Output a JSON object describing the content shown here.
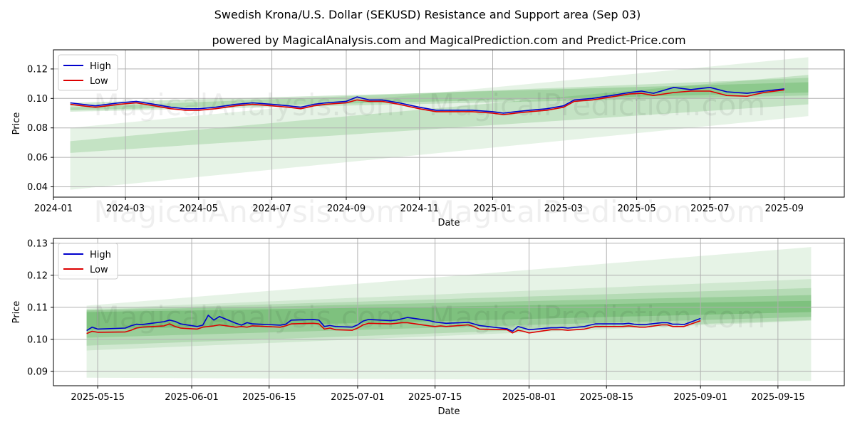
{
  "title": "Swedish Krona/U.S. Dollar (SEKUSD) Resistance and Support area (Sep 03)",
  "subtitle": "powered by MagicalAnalysis.com and MagicalPrediction.com and Predict-Price.com",
  "watermarks": [
    "MagicalAnalysis.com",
    "MagicalPrediction.com"
  ],
  "colors": {
    "high": "#0000cc",
    "low": "#dd0000",
    "band": "#2e9b2e",
    "grid": "#b0b0b0"
  },
  "chart_data": [
    {
      "type": "line",
      "id": "top",
      "xlabel": "Date",
      "ylabel": "Price",
      "xlim": [
        "2024-01-01",
        "2025-10-21"
      ],
      "ylim": [
        0.033,
        0.133
      ],
      "xticks": [
        "2024-01-01",
        "2024-03-01",
        "2024-05-01",
        "2024-07-01",
        "2024-09-01",
        "2024-11-01",
        "2025-01-01",
        "2025-03-01",
        "2025-05-01",
        "2025-07-01",
        "2025-09-01"
      ],
      "xtick_labels": [
        "2024-01",
        "2024-03",
        "2024-05",
        "2024-07",
        "2024-09",
        "2024-11",
        "2025-01",
        "2025-03",
        "2025-05",
        "2025-07",
        "2025-09"
      ],
      "yticks": [
        0.04,
        0.06,
        0.08,
        0.1,
        0.12
      ],
      "ytick_labels": [
        "0.04",
        "0.06",
        "0.08",
        "0.10",
        "0.12"
      ],
      "legend": {
        "position": "top-left",
        "entries": [
          "High",
          "Low"
        ]
      },
      "bands": [
        {
          "x0": "2024-01-15",
          "x1": "2025-09-21",
          "lower": [
            0.038,
            0.088
          ],
          "upper": [
            0.08,
            0.128
          ],
          "opacity": 0.12
        },
        {
          "x0": "2024-01-15",
          "x1": "2025-09-21",
          "lower": [
            0.063,
            0.096
          ],
          "upper": [
            0.071,
            0.116
          ],
          "opacity": 0.18
        },
        {
          "x0": "2024-01-15",
          "x1": "2025-09-21",
          "lower": [
            0.091,
            0.102
          ],
          "upper": [
            0.094,
            0.114
          ],
          "opacity": 0.18
        },
        {
          "x0": "2024-01-15",
          "x1": "2025-09-21",
          "lower": [
            0.092,
            0.104
          ],
          "upper": [
            0.097,
            0.111
          ],
          "opacity": 0.22
        }
      ],
      "series": [
        {
          "name": "High",
          "x": [
            "2024-01-15",
            "2024-01-25",
            "2024-02-05",
            "2024-02-15",
            "2024-02-25",
            "2024-03-10",
            "2024-03-25",
            "2024-04-08",
            "2024-04-20",
            "2024-05-01",
            "2024-05-15",
            "2024-06-01",
            "2024-06-15",
            "2024-07-01",
            "2024-07-15",
            "2024-07-25",
            "2024-08-05",
            "2024-08-15",
            "2024-09-01",
            "2024-09-10",
            "2024-09-20",
            "2024-10-01",
            "2024-10-15",
            "2024-11-01",
            "2024-11-15",
            "2024-12-01",
            "2024-12-15",
            "2025-01-01",
            "2025-01-10",
            "2025-01-20",
            "2025-02-01",
            "2025-02-15",
            "2025-03-01",
            "2025-03-10",
            "2025-03-25",
            "2025-04-10",
            "2025-04-25",
            "2025-05-05",
            "2025-05-15",
            "2025-06-01",
            "2025-06-15",
            "2025-07-01",
            "2025-07-15",
            "2025-08-01",
            "2025-08-15",
            "2025-09-01"
          ],
          "y": [
            0.097,
            0.096,
            0.095,
            0.096,
            0.097,
            0.098,
            0.096,
            0.094,
            0.093,
            0.093,
            0.094,
            0.096,
            0.097,
            0.096,
            0.095,
            0.094,
            0.096,
            0.097,
            0.098,
            0.101,
            0.099,
            0.099,
            0.097,
            0.094,
            0.092,
            0.092,
            0.092,
            0.091,
            0.09,
            0.091,
            0.092,
            0.093,
            0.095,
            0.099,
            0.1,
            0.102,
            0.104,
            0.105,
            0.1035,
            0.1075,
            0.106,
            0.1075,
            0.1045,
            0.1035,
            0.105,
            0.1065
          ]
        },
        {
          "name": "Low",
          "x": [
            "2024-01-15",
            "2024-01-25",
            "2024-02-05",
            "2024-02-15",
            "2024-02-25",
            "2024-03-10",
            "2024-03-25",
            "2024-04-08",
            "2024-04-20",
            "2024-05-01",
            "2024-05-15",
            "2024-06-01",
            "2024-06-15",
            "2024-07-01",
            "2024-07-15",
            "2024-07-25",
            "2024-08-05",
            "2024-08-15",
            "2024-09-01",
            "2024-09-10",
            "2024-09-20",
            "2024-10-01",
            "2024-10-15",
            "2024-11-01",
            "2024-11-15",
            "2024-12-01",
            "2024-12-15",
            "2025-01-01",
            "2025-01-10",
            "2025-01-20",
            "2025-02-01",
            "2025-02-15",
            "2025-03-01",
            "2025-03-10",
            "2025-03-25",
            "2025-04-10",
            "2025-04-25",
            "2025-05-05",
            "2025-05-15",
            "2025-06-01",
            "2025-06-15",
            "2025-07-01",
            "2025-07-15",
            "2025-08-01",
            "2025-08-15",
            "2025-09-01"
          ],
          "y": [
            0.096,
            0.095,
            0.094,
            0.095,
            0.096,
            0.097,
            0.095,
            0.093,
            0.092,
            0.092,
            0.093,
            0.095,
            0.096,
            0.095,
            0.094,
            0.093,
            0.095,
            0.096,
            0.097,
            0.099,
            0.098,
            0.098,
            0.096,
            0.093,
            0.091,
            0.091,
            0.091,
            0.09,
            0.089,
            0.09,
            0.091,
            0.092,
            0.094,
            0.098,
            0.099,
            0.101,
            0.103,
            0.1035,
            0.102,
            0.104,
            0.105,
            0.105,
            0.102,
            0.1015,
            0.104,
            0.1058
          ]
        }
      ]
    },
    {
      "type": "line",
      "id": "bottom",
      "xlabel": "Date",
      "ylabel": "Price",
      "xlim": [
        "2025-05-07",
        "2025-09-27"
      ],
      "ylim": [
        0.0855,
        0.1315
      ],
      "xticks": [
        "2025-05-15",
        "2025-06-01",
        "2025-06-15",
        "2025-07-01",
        "2025-07-15",
        "2025-08-01",
        "2025-08-15",
        "2025-09-01",
        "2025-09-15"
      ],
      "xtick_labels": [
        "2025-05-15",
        "2025-06-01",
        "2025-06-15",
        "2025-07-01",
        "2025-07-15",
        "2025-08-01",
        "2025-08-15",
        "2025-09-01",
        "2025-09-15"
      ],
      "yticks": [
        0.09,
        0.1,
        0.11,
        0.12,
        0.13
      ],
      "ytick_labels": [
        "0.09",
        "0.10",
        "0.11",
        "0.12",
        "0.13"
      ],
      "legend": {
        "position": "top-left",
        "entries": [
          "High",
          "Low"
        ]
      },
      "bands": [
        {
          "x0": "2025-05-13",
          "x1": "2025-09-21",
          "lower": [
            0.088,
            0.087
          ],
          "upper": [
            0.1105,
            0.1288
          ],
          "opacity": 0.12
        },
        {
          "x0": "2025-05-13",
          "x1": "2025-09-21",
          "lower": [
            0.0965,
            0.1058
          ],
          "upper": [
            0.1095,
            0.1188
          ],
          "opacity": 0.12
        },
        {
          "x0": "2025-05-13",
          "x1": "2025-09-21",
          "lower": [
            0.098,
            0.106
          ],
          "upper": [
            0.1092,
            0.116
          ],
          "opacity": 0.16
        },
        {
          "x0": "2025-05-13",
          "x1": "2025-09-21",
          "lower": [
            0.1005,
            0.107
          ],
          "upper": [
            0.109,
            0.1138
          ],
          "opacity": 0.2
        },
        {
          "x0": "2025-05-13",
          "x1": "2025-09-21",
          "lower": [
            0.103,
            0.1085
          ],
          "upper": [
            0.1085,
            0.112
          ],
          "opacity": 0.25
        }
      ],
      "series": [
        {
          "name": "High",
          "x": [
            "2025-05-13",
            "2025-05-14",
            "2025-05-15",
            "2025-05-20",
            "2025-05-21",
            "2025-05-22",
            "2025-05-23",
            "2025-05-27",
            "2025-05-28",
            "2025-05-29",
            "2025-05-30",
            "2025-06-02",
            "2025-06-03",
            "2025-06-04",
            "2025-06-05",
            "2025-06-06",
            "2025-06-09",
            "2025-06-10",
            "2025-06-11",
            "2025-06-12",
            "2025-06-17",
            "2025-06-18",
            "2025-06-19",
            "2025-06-23",
            "2025-06-24",
            "2025-06-25",
            "2025-06-26",
            "2025-06-27",
            "2025-06-30",
            "2025-07-01",
            "2025-07-02",
            "2025-07-03",
            "2025-07-07",
            "2025-07-08",
            "2025-07-09",
            "2025-07-10",
            "2025-07-14",
            "2025-07-15",
            "2025-07-16",
            "2025-07-17",
            "2025-07-21",
            "2025-07-22",
            "2025-07-23",
            "2025-07-28",
            "2025-07-29",
            "2025-07-30",
            "2025-07-31",
            "2025-08-01",
            "2025-08-05",
            "2025-08-06",
            "2025-08-07",
            "2025-08-08",
            "2025-08-11",
            "2025-08-12",
            "2025-08-13",
            "2025-08-14",
            "2025-08-15",
            "2025-08-18",
            "2025-08-19",
            "2025-08-20",
            "2025-08-21",
            "2025-08-22",
            "2025-08-25",
            "2025-08-26",
            "2025-08-27",
            "2025-08-28",
            "2025-08-29",
            "2025-09-01"
          ],
          "y": [
            0.1027,
            0.1038,
            0.1032,
            0.1035,
            0.1042,
            0.1047,
            0.1046,
            0.1055,
            0.106,
            0.1056,
            0.1048,
            0.104,
            0.1044,
            0.1075,
            0.106,
            0.1071,
            0.105,
            0.1044,
            0.1052,
            0.1048,
            0.1044,
            0.1047,
            0.106,
            0.1062,
            0.106,
            0.104,
            0.1043,
            0.104,
            0.1038,
            0.1045,
            0.1057,
            0.1062,
            0.1058,
            0.106,
            0.1064,
            0.1068,
            0.1058,
            0.1054,
            0.1052,
            0.105,
            0.1053,
            0.1048,
            0.1043,
            0.1033,
            0.1025,
            0.104,
            0.1035,
            0.103,
            0.1036,
            0.1036,
            0.1037,
            0.1035,
            0.104,
            0.1044,
            0.1048,
            0.1048,
            0.1048,
            0.1048,
            0.105,
            0.1047,
            0.1046,
            0.1046,
            0.1052,
            0.1052,
            0.1047,
            0.1047,
            0.1046,
            0.1065
          ]
        },
        {
          "name": "Low",
          "x": [
            "2025-05-13",
            "2025-05-14",
            "2025-05-15",
            "2025-05-20",
            "2025-05-21",
            "2025-05-22",
            "2025-05-23",
            "2025-05-27",
            "2025-05-28",
            "2025-05-29",
            "2025-05-30",
            "2025-06-02",
            "2025-06-03",
            "2025-06-04",
            "2025-06-05",
            "2025-06-06",
            "2025-06-09",
            "2025-06-10",
            "2025-06-11",
            "2025-06-12",
            "2025-06-17",
            "2025-06-18",
            "2025-06-19",
            "2025-06-23",
            "2025-06-24",
            "2025-06-25",
            "2025-06-26",
            "2025-06-27",
            "2025-06-30",
            "2025-07-01",
            "2025-07-02",
            "2025-07-03",
            "2025-07-07",
            "2025-07-08",
            "2025-07-09",
            "2025-07-10",
            "2025-07-14",
            "2025-07-15",
            "2025-07-16",
            "2025-07-17",
            "2025-07-21",
            "2025-07-22",
            "2025-07-23",
            "2025-07-28",
            "2025-07-29",
            "2025-07-30",
            "2025-07-31",
            "2025-08-01",
            "2025-08-05",
            "2025-08-06",
            "2025-08-07",
            "2025-08-08",
            "2025-08-11",
            "2025-08-12",
            "2025-08-13",
            "2025-08-14",
            "2025-08-15",
            "2025-08-18",
            "2025-08-19",
            "2025-08-20",
            "2025-08-21",
            "2025-08-22",
            "2025-08-25",
            "2025-08-26",
            "2025-08-27",
            "2025-08-28",
            "2025-08-29",
            "2025-09-01"
          ],
          "y": [
            0.1018,
            0.1025,
            0.1022,
            0.1023,
            0.1028,
            0.1035,
            0.1038,
            0.1042,
            0.1048,
            0.104,
            0.1035,
            0.1032,
            0.1038,
            0.104,
            0.1042,
            0.1045,
            0.1038,
            0.104,
            0.1038,
            0.1042,
            0.1038,
            0.1042,
            0.1048,
            0.105,
            0.1048,
            0.1032,
            0.1035,
            0.103,
            0.1028,
            0.1035,
            0.1045,
            0.105,
            0.1048,
            0.105,
            0.1052,
            0.1052,
            0.1042,
            0.104,
            0.1042,
            0.104,
            0.1045,
            0.104,
            0.1032,
            0.103,
            0.102,
            0.1028,
            0.1025,
            0.102,
            0.103,
            0.103,
            0.103,
            0.1028,
            0.1032,
            0.1036,
            0.104,
            0.104,
            0.104,
            0.104,
            0.1042,
            0.104,
            0.1038,
            0.1038,
            0.1045,
            0.1045,
            0.104,
            0.104,
            0.104,
            0.1058
          ]
        }
      ]
    }
  ]
}
